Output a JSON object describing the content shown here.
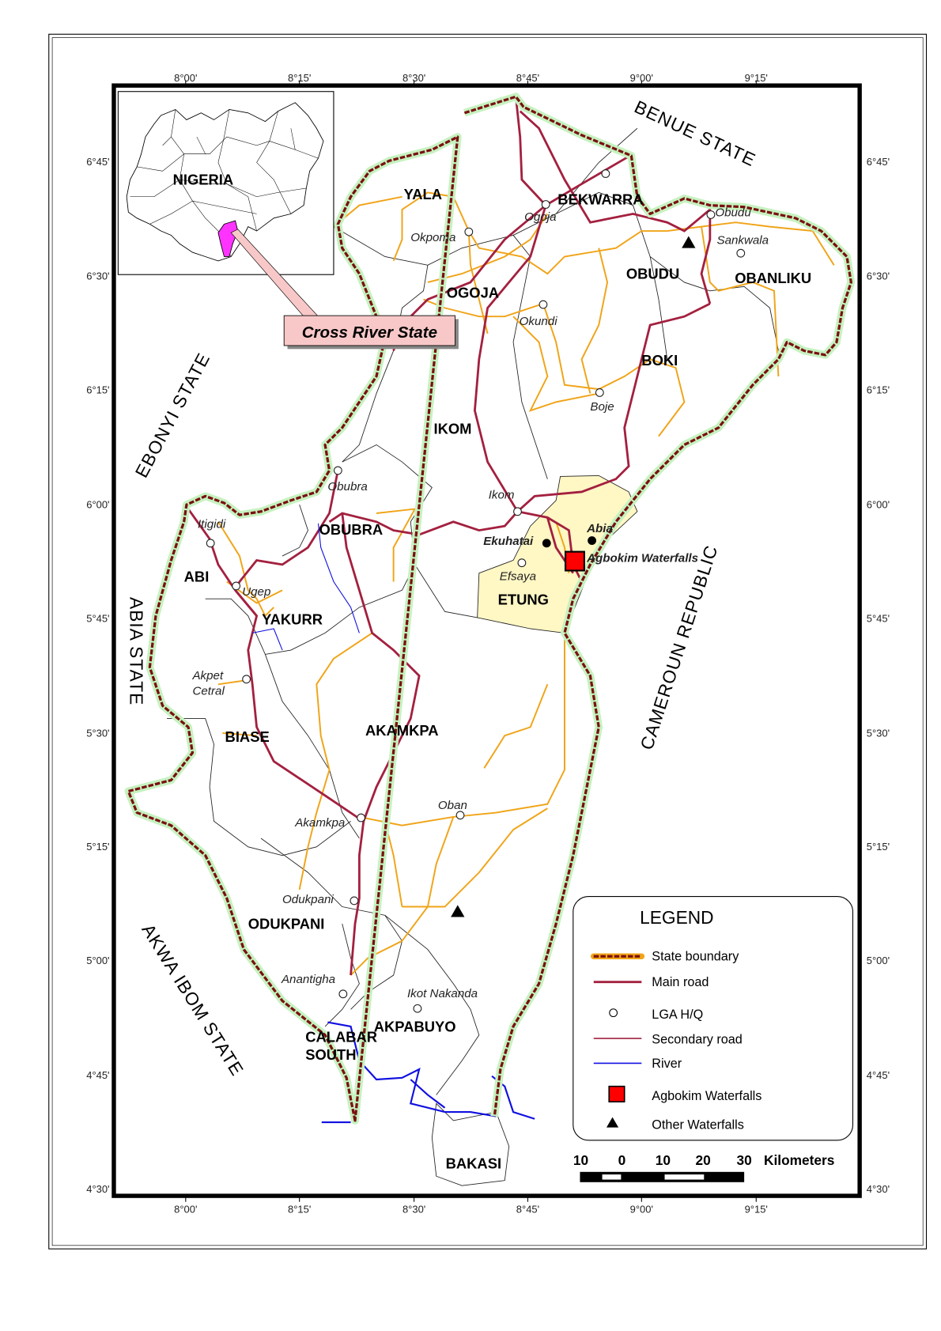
{
  "map": {
    "longitude_ticks": [
      "8°00'",
      "8°15'",
      "8°30'",
      "8°45'",
      "9°00'",
      "9°15'"
    ],
    "latitude_ticks": [
      "6°45'",
      "6°30'",
      "6°15'",
      "6°00'",
      "5°45'",
      "5°30'",
      "5°15'",
      "5°00'",
      "4°45'",
      "4°30'"
    ],
    "neighbors": {
      "benue": "BENUE  STATE",
      "ebonyi": "EBONYI STATE",
      "abia": "ABIA  STATE",
      "cameroun": "CAMEROUN REPUBLIC",
      "akwa_ibom": "AKWA  IBOM  STATE"
    },
    "lgas": [
      "YALA",
      "BEKWARRA",
      "OGOJA",
      "OBUDU",
      "OBANLIKU",
      "BOKI",
      "IKOM",
      "OBUBRA",
      "ABI",
      "YAKURR",
      "ETUNG",
      "BIASE",
      "AKAMKPA",
      "ODUKPANI",
      "CALABAR",
      "SOUTH",
      "AKPABUYO",
      "BAKASI"
    ],
    "towns": [
      "Okpoma",
      "Ogoja",
      "Obudu",
      "Sankwala",
      "Okundi",
      "Boje",
      "Obubra",
      "Ikom",
      "Itigidi",
      "Ugep",
      "Efsaya",
      "Akpet",
      "Cetral",
      "Akamkpa",
      "Oban",
      "Odukpani",
      "Anantigha",
      "Ikot Nakanda"
    ],
    "highlight_towns": [
      "Ekuhatai",
      "Abia"
    ],
    "feature_label": "Agbokim Waterfalls",
    "colors": {
      "state_boundary": "#7a1010",
      "main_road": "#a3203f",
      "secondary_road": "#f0a418",
      "river": "#1010e0",
      "agbokim": "#ff0000",
      "etung_fill": "#fff7c4"
    }
  },
  "inset": {
    "country_label": "NIGERIA",
    "callout": "Cross River State",
    "highlight_color": "#ff33ff"
  },
  "legend": {
    "title": "LEGEND",
    "items": [
      "State boundary",
      "Main road",
      "LGA  H/Q",
      "Secondary road",
      "River",
      "Agbokim Waterfalls",
      "Other Waterfalls"
    ]
  },
  "scale_bar": {
    "labels": [
      "10",
      "0",
      "10",
      "20",
      "30"
    ],
    "unit": "Kilometers"
  }
}
